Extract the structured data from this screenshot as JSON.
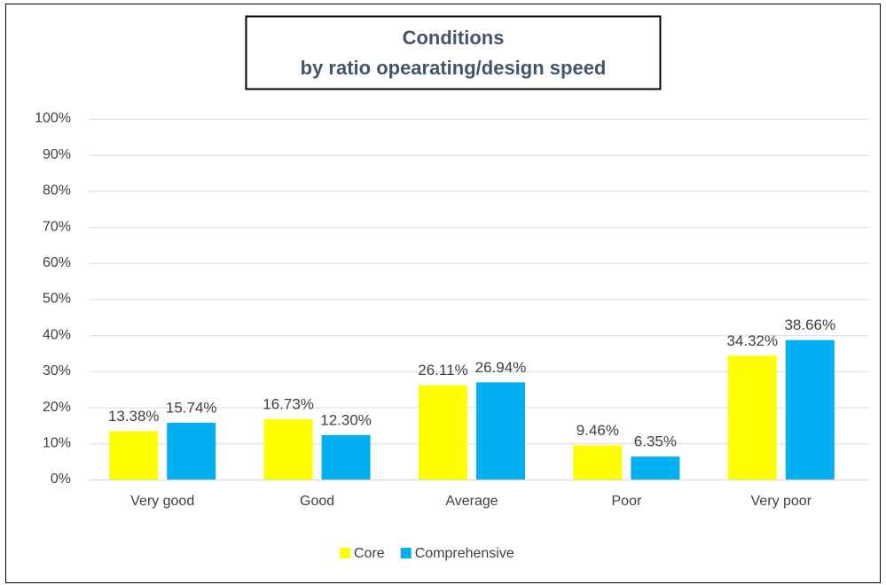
{
  "chart_data": {
    "type": "bar",
    "title_lines": [
      "Conditions",
      "by ratio opearating/design speed"
    ],
    "categories": [
      "Very good",
      "Good",
      "Average",
      "Poor",
      "Very poor"
    ],
    "series": [
      {
        "name": "Core",
        "color": "#ffff00",
        "values": [
          13.38,
          16.73,
          26.11,
          9.46,
          34.32
        ],
        "value_labels": [
          "13.38%",
          "16.73%",
          "26.11%",
          "9.46%",
          "34.32%"
        ]
      },
      {
        "name": "Comprehensive",
        "color": "#00b0f0",
        "values": [
          15.74,
          12.3,
          26.94,
          6.35,
          38.66
        ],
        "value_labels": [
          "15.74%",
          "12.30%",
          "26.94%",
          "6.35%",
          "38.66%"
        ]
      }
    ],
    "ylim": [
      0,
      100
    ],
    "yticks": [
      {
        "value": 0,
        "label": "0%"
      },
      {
        "value": 10,
        "label": "10%"
      },
      {
        "value": 20,
        "label": "20%"
      },
      {
        "value": 30,
        "label": "30%"
      },
      {
        "value": 40,
        "label": "40%"
      },
      {
        "value": 50,
        "label": "50%"
      },
      {
        "value": 60,
        "label": "60%"
      },
      {
        "value": 70,
        "label": "70%"
      },
      {
        "value": 80,
        "label": "80%"
      },
      {
        "value": 90,
        "label": "90%"
      },
      {
        "value": 100,
        "label": "100%"
      }
    ],
    "grid": true,
    "legend": "bottom"
  }
}
